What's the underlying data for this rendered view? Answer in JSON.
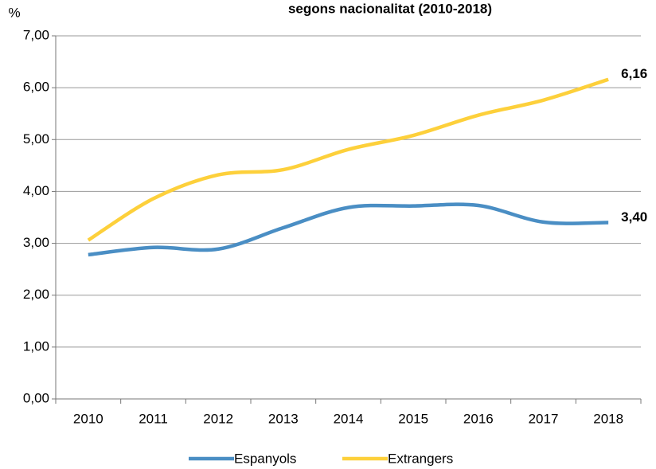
{
  "chart_data": {
    "type": "line",
    "title": "segons nacionalitat (2010-2018)",
    "y_label": "%",
    "categories": [
      "2010",
      "2011",
      "2012",
      "2013",
      "2014",
      "2015",
      "2016",
      "2017",
      "2018"
    ],
    "series": [
      {
        "name": "Espanyols",
        "color": "#4a8ec4",
        "values": [
          2.78,
          2.92,
          2.89,
          3.3,
          3.69,
          3.72,
          3.73,
          3.41,
          3.4
        ],
        "value_labels": [
          null,
          null,
          null,
          null,
          null,
          null,
          null,
          null,
          "3,40"
        ]
      },
      {
        "name": "Extrangers",
        "color": "#fdd03b",
        "values": [
          3.06,
          3.86,
          4.32,
          4.42,
          4.81,
          5.08,
          5.47,
          5.76,
          6.16
        ],
        "value_labels": [
          null,
          null,
          null,
          null,
          null,
          null,
          null,
          null,
          "6,16"
        ]
      }
    ],
    "ylim": [
      0,
      7
    ],
    "yticks": [
      {
        "value": 0,
        "label": "0,00"
      },
      {
        "value": 1,
        "label": "1,00"
      },
      {
        "value": 2,
        "label": "2,00"
      },
      {
        "value": 3,
        "label": "3,00"
      },
      {
        "value": 4,
        "label": "4,00"
      },
      {
        "value": 5,
        "label": "5,00"
      },
      {
        "value": 6,
        "label": "6,00"
      },
      {
        "value": 7,
        "label": "7,00"
      }
    ],
    "grid": true,
    "legend": "bottom"
  }
}
